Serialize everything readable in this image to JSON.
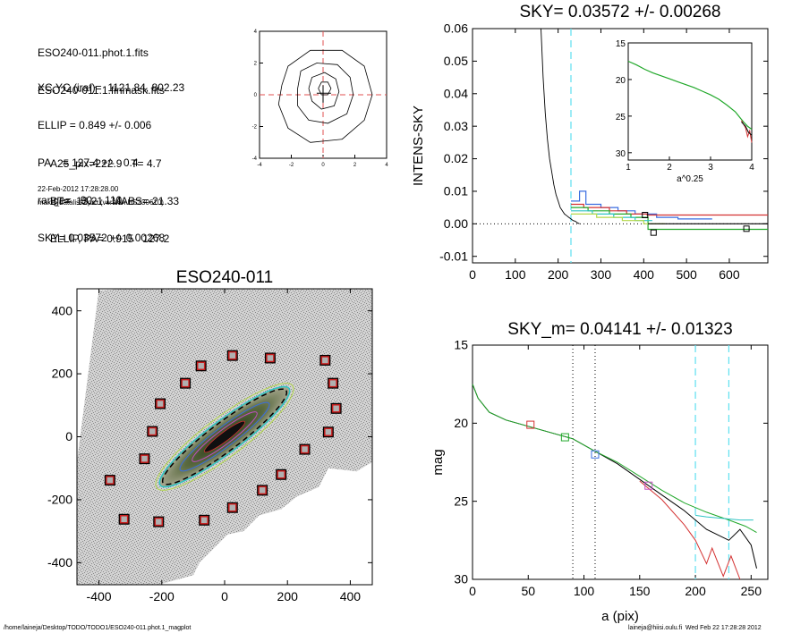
{
  "header": {
    "lines_a": [
      "ESO240-011.phot.1.fits",
      "ESO240-011.1.finmask.fits"
    ],
    "lines_b": [
      "XC,YC (iraf)=  1121.84, 802.23",
      "ELLIP = 0.849 +/- 0.006",
      "PA    = 127.4 +/-   0.4",
      "range=   90.-  110.",
      "SKY= 0.03572 +/- 0.00268"
    ],
    "lines_c": [
      "A25_pix=222.9   T= 4.7",
      "BT=  13.21   MABS=-21.33",
      "ELLIP, PA= 0.915   127.2"
    ],
    "timestamp": "22-Feb-2012 17:28:28.00",
    "program": "make_datalist0.pro (version HS230610)"
  },
  "footer": {
    "path": "/home/laineja/Desktop/TODO/TODO1/ESO240-011.phot.1_magplot",
    "user": "laineja@hiisi.oulu.fi  Wed Feb 22 17:28:28 2012"
  },
  "chart_data": [
    {
      "id": "contour",
      "type": "contour",
      "x_ticks": [
        "-4",
        "-2",
        "0",
        "2",
        "4"
      ],
      "y_ticks": [
        "-4",
        "-2",
        "0",
        "2",
        "4"
      ],
      "xlim": [
        -4,
        4
      ],
      "ylim": [
        -4,
        4
      ],
      "contours": [
        [
          [
            -2.6,
            0.6
          ],
          [
            -2.2,
            1.8
          ],
          [
            -0.8,
            2.8
          ],
          [
            1.2,
            2.8
          ],
          [
            2.6,
            1.8
          ],
          [
            3.1,
            0
          ],
          [
            2.6,
            -1.6
          ],
          [
            1.2,
            -2.8
          ],
          [
            -0.8,
            -3
          ],
          [
            -2.2,
            -2.1
          ],
          [
            -2.8,
            -0.6
          ]
        ],
        [
          [
            -1.6,
            0.4
          ],
          [
            -1.4,
            1.5
          ],
          [
            -0.4,
            2.0
          ],
          [
            0.9,
            1.9
          ],
          [
            1.7,
            1.1
          ],
          [
            1.9,
            0
          ],
          [
            1.5,
            -1.2
          ],
          [
            0.3,
            -1.8
          ],
          [
            -0.9,
            -1.6
          ],
          [
            -1.6,
            -0.7
          ]
        ],
        [
          [
            -0.9,
            0.4
          ],
          [
            -0.7,
            1.1
          ],
          [
            0.1,
            1.4
          ],
          [
            0.8,
            1.0
          ],
          [
            1.0,
            0.2
          ],
          [
            0.7,
            -0.7
          ],
          [
            -0.1,
            -0.9
          ],
          [
            -0.7,
            -0.4
          ]
        ],
        [
          [
            -0.3,
            0.4
          ],
          [
            -0.1,
            0.8
          ],
          [
            0.3,
            0.8
          ],
          [
            0.5,
            0.4
          ],
          [
            0.3,
            0.0
          ],
          [
            -0.1,
            0.0
          ]
        ]
      ]
    },
    {
      "id": "sky",
      "type": "line",
      "title": "SKY= 0.03572 +/- 0.00268",
      "ylabel": "INTENS-SKY",
      "xlim": [
        0,
        690
      ],
      "ylim": [
        -0.012,
        0.06
      ],
      "x_ticks": [
        0,
        100,
        200,
        300,
        400,
        500,
        600
      ],
      "y_ticks": [
        "0.06",
        "0.05",
        "0.04",
        "0.03",
        "0.02",
        "0.01",
        "0.00",
        "-0.01"
      ],
      "y_tick_values": [
        0.06,
        0.05,
        0.04,
        0.03,
        0.02,
        0.01,
        0.0,
        -0.01
      ],
      "vline_x": 230,
      "profile": [
        [
          160,
          0.06
        ],
        [
          165,
          0.045
        ],
        [
          170,
          0.034
        ],
        [
          175,
          0.026
        ],
        [
          180,
          0.02
        ],
        [
          185,
          0.016
        ],
        [
          190,
          0.012
        ],
        [
          195,
          0.009
        ],
        [
          200,
          0.007
        ],
        [
          205,
          0.005
        ],
        [
          210,
          0.004
        ],
        [
          215,
          0.003
        ],
        [
          220,
          0.0025
        ],
        [
          225,
          0.002
        ],
        [
          230,
          0.0015
        ],
        [
          235,
          0.001
        ],
        [
          240,
          0.0008
        ],
        [
          245,
          0.0003
        ],
        [
          250,
          0.0
        ]
      ],
      "series": [
        {
          "color": "#3a6de0",
          "values": [
            [
              230,
              0.007
            ],
            [
              250,
              0.007
            ],
            [
              250,
              0.01
            ],
            [
              265,
              0.01
            ],
            [
              265,
              0.006
            ],
            [
              300,
              0.006
            ],
            [
              300,
              0.005
            ],
            [
              340,
              0.005
            ],
            [
              340,
              0.004
            ],
            [
              380,
              0.004
            ],
            [
              380,
              0.003
            ],
            [
              430,
              0.003
            ],
            [
              430,
              0.002
            ],
            [
              480,
              0.002
            ],
            [
              480,
              0.0015
            ],
            [
              560,
              0.0015
            ]
          ]
        },
        {
          "color": "#d43232",
          "values": [
            [
              230,
              0.006
            ],
            [
              260,
              0.006
            ],
            [
              260,
              0.005
            ],
            [
              320,
              0.005
            ],
            [
              320,
              0.004
            ],
            [
              360,
              0.004
            ],
            [
              360,
              0.003
            ],
            [
              408,
              0.003
            ],
            [
              408,
              0.0027
            ],
            [
              690,
              0.0027
            ]
          ]
        },
        {
          "color": "#21a82a",
          "values": [
            [
              230,
              0.005
            ],
            [
              270,
              0.005
            ],
            [
              270,
              0.004
            ],
            [
              320,
              0.004
            ],
            [
              320,
              0.003
            ],
            [
              370,
              0.003
            ],
            [
              370,
              0.002
            ],
            [
              410,
              0.002
            ],
            [
              410,
              -0.0017
            ],
            [
              690,
              -0.0017
            ]
          ]
        },
        {
          "color": "#2ec4c4",
          "values": [
            [
              230,
              0.004
            ],
            [
              280,
              0.004
            ],
            [
              280,
              0.003
            ],
            [
              330,
              0.003
            ],
            [
              330,
              0.002
            ],
            [
              380,
              0.002
            ],
            [
              380,
              0.001
            ],
            [
              420,
              0.001
            ]
          ]
        },
        {
          "color": "#b4d84a",
          "values": [
            [
              230,
              0.003
            ],
            [
              290,
              0.003
            ],
            [
              290,
              0.002
            ],
            [
              350,
              0.002
            ],
            [
              350,
              0.001
            ],
            [
              400,
              0.001
            ],
            [
              400,
              0.0
            ],
            [
              450,
              0.0
            ]
          ]
        },
        {
          "color": "#000000",
          "values": [
            [
              410,
              0.0
            ],
            [
              690,
              0.0
            ]
          ]
        }
      ],
      "markers": [
        {
          "x": 403,
          "y": 0.0027,
          "color": "#000"
        },
        {
          "x": 423,
          "y": -0.0027,
          "color": "#000"
        },
        {
          "x": 640,
          "y": -0.0015,
          "color": "#000"
        }
      ],
      "inset": {
        "xlabel": "a^0.25",
        "xlim": [
          1,
          4
        ],
        "ylim": [
          15,
          31
        ],
        "x_ticks": [
          "1",
          "2",
          "3",
          "4"
        ],
        "y_ticks": [
          "15",
          "20",
          "25",
          "30"
        ],
        "y_tick_values": [
          15,
          20,
          25,
          30
        ],
        "curve": [
          [
            1.0,
            17.5
          ],
          [
            1.2,
            18.0
          ],
          [
            1.4,
            18.6
          ],
          [
            1.6,
            19.1
          ],
          [
            1.8,
            19.5
          ],
          [
            2.0,
            19.9
          ],
          [
            2.2,
            20.3
          ],
          [
            2.4,
            20.7
          ],
          [
            2.6,
            21.1
          ],
          [
            2.8,
            21.6
          ],
          [
            3.0,
            22.1
          ],
          [
            3.2,
            22.7
          ],
          [
            3.4,
            23.5
          ],
          [
            3.6,
            24.4
          ],
          [
            3.7,
            25.1
          ],
          [
            3.8,
            25.8
          ],
          [
            3.9,
            26.4
          ],
          [
            4.0,
            26.8
          ]
        ]
      }
    },
    {
      "id": "image",
      "type": "image",
      "title": "ESO240-011",
      "xlim": [
        -470,
        470
      ],
      "ylim": [
        -470,
        470
      ],
      "x_ticks": [
        -400,
        -200,
        0,
        200,
        400
      ],
      "y_ticks": [
        400,
        200,
        0,
        -200,
        -400
      ],
      "squares": [
        [
          25,
          258
        ],
        [
          -75,
          225
        ],
        [
          145,
          250
        ],
        [
          320,
          243
        ],
        [
          -125,
          170
        ],
        [
          345,
          170
        ],
        [
          -205,
          105
        ],
        [
          355,
          90
        ],
        [
          -230,
          17
        ],
        [
          330,
          15
        ],
        [
          -255,
          -70
        ],
        [
          255,
          -40
        ],
        [
          180,
          -120
        ],
        [
          -365,
          -138
        ],
        [
          120,
          -170
        ],
        [
          25,
          -225
        ],
        [
          -320,
          -262
        ],
        [
          -210,
          -270
        ],
        [
          -65,
          -265
        ]
      ]
    },
    {
      "id": "mag",
      "type": "line",
      "title": "SKY_m=  0.04141 +/- 0.01323",
      "xlabel": "a (pix)",
      "ylabel": "mag",
      "xlim": [
        0,
        265
      ],
      "ylim": [
        15,
        30
      ],
      "x_ticks": [
        0,
        50,
        100,
        150,
        200,
        250
      ],
      "y_ticks": [
        "15",
        "20",
        "25",
        "30"
      ],
      "y_tick_values": [
        15,
        20,
        25,
        30
      ],
      "dotted_x": [
        90,
        110
      ],
      "dashed_x": [
        200,
        230
      ],
      "series": [
        {
          "color": "#000000",
          "values": [
            [
              0,
              17.5
            ],
            [
              5,
              18.4
            ],
            [
              15,
              19.3
            ],
            [
              30,
              19.8
            ],
            [
              50,
              20.2
            ],
            [
              70,
              20.6
            ],
            [
              90,
              21.0
            ],
            [
              110,
              21.8
            ],
            [
              130,
              22.6
            ],
            [
              150,
              23.6
            ],
            [
              170,
              24.6
            ],
            [
              190,
              25.6
            ],
            [
              210,
              26.8
            ],
            [
              230,
              27.5
            ],
            [
              240,
              26.8
            ],
            [
              250,
              27.8
            ],
            [
              255,
              29.3
            ]
          ]
        },
        {
          "color": "#d43232",
          "values": [
            [
              150,
              23.7
            ],
            [
              170,
              24.9
            ],
            [
              190,
              26.5
            ],
            [
              200,
              27.5
            ],
            [
              210,
              29.0
            ],
            [
              215,
              28.0
            ],
            [
              225,
              29.8
            ],
            [
              232,
              28.5
            ],
            [
              240,
              30.0
            ]
          ]
        },
        {
          "color": "#21a82a",
          "values": [
            [
              0,
              17.5
            ],
            [
              5,
              18.4
            ],
            [
              15,
              19.3
            ],
            [
              30,
              19.8
            ],
            [
              50,
              20.2
            ],
            [
              70,
              20.6
            ],
            [
              90,
              21.0
            ],
            [
              110,
              21.8
            ],
            [
              130,
              22.5
            ],
            [
              150,
              23.4
            ],
            [
              170,
              24.3
            ],
            [
              190,
              25.1
            ],
            [
              210,
              25.7
            ],
            [
              230,
              26.2
            ],
            [
              245,
              26.6
            ],
            [
              255,
              27.0
            ]
          ]
        },
        {
          "color": "#2ec4c4",
          "values": [
            [
              200,
              25.9
            ],
            [
              210,
              26.0
            ],
            [
              225,
              26.1
            ],
            [
              240,
              26.2
            ],
            [
              252,
              26.2
            ]
          ]
        }
      ],
      "markers": [
        {
          "x": 52,
          "y": 20.1,
          "color": "#d43232"
        },
        {
          "x": 83,
          "y": 20.9,
          "color": "#21a82a"
        },
        {
          "x": 110,
          "y": 22.0,
          "color": "#3a6de0"
        },
        {
          "x": 158,
          "y": 24.0,
          "color": "#c24ec2"
        }
      ]
    }
  ]
}
